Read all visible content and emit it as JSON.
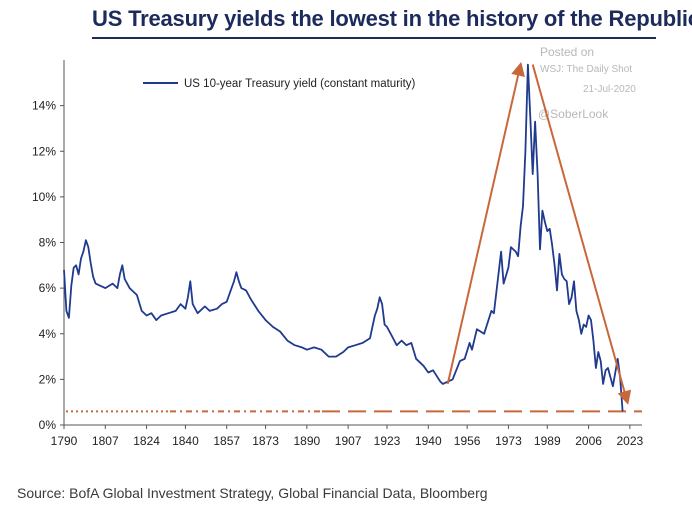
{
  "title": "US Treasury yields the lowest in the history of the Republic",
  "posted": {
    "line1": "Posted on",
    "line2": "WSJ: The Daily Shot",
    "line3": "21-Jul-2020",
    "line4": "@SoberLook"
  },
  "source": "Source: BofA Global Investment Strategy, Global Financial Data, Bloomberg",
  "chart_data": {
    "type": "line",
    "series": [
      {
        "name": "US 10-year Treasury yield (constant maturity)",
        "color": "#1f3a8f",
        "points": [
          [
            1790,
            6.8
          ],
          [
            1791,
            5.0
          ],
          [
            1792,
            4.7
          ],
          [
            1793,
            6.1
          ],
          [
            1794,
            6.9
          ],
          [
            1795,
            7.0
          ],
          [
            1796,
            6.6
          ],
          [
            1797,
            7.3
          ],
          [
            1798,
            7.6
          ],
          [
            1799,
            8.1
          ],
          [
            1800,
            7.8
          ],
          [
            1801,
            7.1
          ],
          [
            1802,
            6.5
          ],
          [
            1803,
            6.2
          ],
          [
            1805,
            6.1
          ],
          [
            1807,
            6.0
          ],
          [
            1810,
            6.2
          ],
          [
            1812,
            6.0
          ],
          [
            1813,
            6.6
          ],
          [
            1814,
            7.0
          ],
          [
            1815,
            6.4
          ],
          [
            1817,
            6.0
          ],
          [
            1820,
            5.7
          ],
          [
            1822,
            5.0
          ],
          [
            1824,
            4.8
          ],
          [
            1826,
            4.9
          ],
          [
            1828,
            4.6
          ],
          [
            1830,
            4.8
          ],
          [
            1833,
            4.9
          ],
          [
            1836,
            5.0
          ],
          [
            1838,
            5.3
          ],
          [
            1840,
            5.1
          ],
          [
            1841,
            5.6
          ],
          [
            1842,
            6.3
          ],
          [
            1843,
            5.3
          ],
          [
            1845,
            4.9
          ],
          [
            1848,
            5.2
          ],
          [
            1850,
            5.0
          ],
          [
            1853,
            5.1
          ],
          [
            1855,
            5.3
          ],
          [
            1857,
            5.4
          ],
          [
            1858,
            5.7
          ],
          [
            1860,
            6.3
          ],
          [
            1861,
            6.7
          ],
          [
            1862,
            6.3
          ],
          [
            1863,
            6.0
          ],
          [
            1865,
            5.9
          ],
          [
            1867,
            5.5
          ],
          [
            1870,
            5.0
          ],
          [
            1873,
            4.6
          ],
          [
            1876,
            4.3
          ],
          [
            1879,
            4.1
          ],
          [
            1882,
            3.7
          ],
          [
            1885,
            3.5
          ],
          [
            1888,
            3.4
          ],
          [
            1890,
            3.3
          ],
          [
            1893,
            3.4
          ],
          [
            1896,
            3.3
          ],
          [
            1899,
            3.0
          ],
          [
            1902,
            3.0
          ],
          [
            1905,
            3.2
          ],
          [
            1907,
            3.4
          ],
          [
            1910,
            3.5
          ],
          [
            1913,
            3.6
          ],
          [
            1916,
            3.8
          ],
          [
            1917,
            4.3
          ],
          [
            1918,
            4.8
          ],
          [
            1919,
            5.1
          ],
          [
            1920,
            5.6
          ],
          [
            1921,
            5.3
          ],
          [
            1922,
            4.4
          ],
          [
            1923,
            4.3
          ],
          [
            1925,
            3.9
          ],
          [
            1927,
            3.5
          ],
          [
            1929,
            3.7
          ],
          [
            1931,
            3.5
          ],
          [
            1933,
            3.6
          ],
          [
            1935,
            2.9
          ],
          [
            1938,
            2.6
          ],
          [
            1940,
            2.3
          ],
          [
            1942,
            2.4
          ],
          [
            1945,
            1.9
          ],
          [
            1946,
            1.8
          ],
          [
            1950,
            2.0
          ],
          [
            1953,
            2.8
          ],
          [
            1955,
            2.9
          ],
          [
            1957,
            3.6
          ],
          [
            1958,
            3.3
          ],
          [
            1960,
            4.2
          ],
          [
            1963,
            4.0
          ],
          [
            1966,
            5.0
          ],
          [
            1967,
            4.9
          ],
          [
            1969,
            6.7
          ],
          [
            1970,
            7.6
          ],
          [
            1971,
            6.2
          ],
          [
            1973,
            6.9
          ],
          [
            1974,
            7.8
          ],
          [
            1976,
            7.6
          ],
          [
            1977,
            7.4
          ],
          [
            1978,
            8.7
          ],
          [
            1979,
            9.6
          ],
          [
            1980,
            12.0
          ],
          [
            1981,
            15.8
          ],
          [
            1982,
            13.5
          ],
          [
            1983,
            11.0
          ],
          [
            1984,
            13.3
          ],
          [
            1985,
            11.0
          ],
          [
            1986,
            7.7
          ],
          [
            1987,
            9.4
          ],
          [
            1988,
            8.9
          ],
          [
            1989,
            8.5
          ],
          [
            1990,
            8.6
          ],
          [
            1991,
            7.9
          ],
          [
            1992,
            7.0
          ],
          [
            1993,
            5.9
          ],
          [
            1994,
            7.5
          ],
          [
            1995,
            6.6
          ],
          [
            1996,
            6.4
          ],
          [
            1997,
            6.3
          ],
          [
            1998,
            5.3
          ],
          [
            1999,
            5.6
          ],
          [
            2000,
            6.3
          ],
          [
            2001,
            5.0
          ],
          [
            2002,
            4.6
          ],
          [
            2003,
            4.0
          ],
          [
            2004,
            4.4
          ],
          [
            2005,
            4.3
          ],
          [
            2006,
            4.8
          ],
          [
            2007,
            4.6
          ],
          [
            2008,
            3.7
          ],
          [
            2009,
            2.5
          ],
          [
            2010,
            3.2
          ],
          [
            2011,
            2.8
          ],
          [
            2012,
            1.8
          ],
          [
            2013,
            2.4
          ],
          [
            2014,
            2.5
          ],
          [
            2015,
            2.1
          ],
          [
            2016,
            1.7
          ],
          [
            2017,
            2.3
          ],
          [
            2018,
            2.9
          ],
          [
            2019,
            2.1
          ],
          [
            2020,
            0.6
          ]
        ]
      }
    ],
    "reference_line": {
      "value": 0.6,
      "color": "#c8683a",
      "style": "dashed"
    },
    "annotations": [
      {
        "type": "arrow",
        "from": [
          1948,
          1.8
        ],
        "to": [
          1978,
          15.8
        ],
        "color": "#c8683a"
      },
      {
        "type": "arrow",
        "from": [
          1983,
          15.8
        ],
        "to": [
          2022,
          1.0
        ],
        "color": "#c8683a"
      }
    ],
    "xlim": [
      1790,
      2028
    ],
    "ylim": [
      0,
      16
    ],
    "xticks": [
      1790,
      1807,
      1824,
      1840,
      1857,
      1873,
      1890,
      1907,
      1923,
      1940,
      1956,
      1973,
      1989,
      2006,
      2023
    ],
    "yticks": [
      0,
      2,
      4,
      6,
      8,
      10,
      12,
      14
    ],
    "ytick_labels": [
      "0%",
      "2%",
      "4%",
      "6%",
      "8%",
      "10%",
      "12%",
      "14%"
    ],
    "legend": "top-left",
    "grid": false
  }
}
